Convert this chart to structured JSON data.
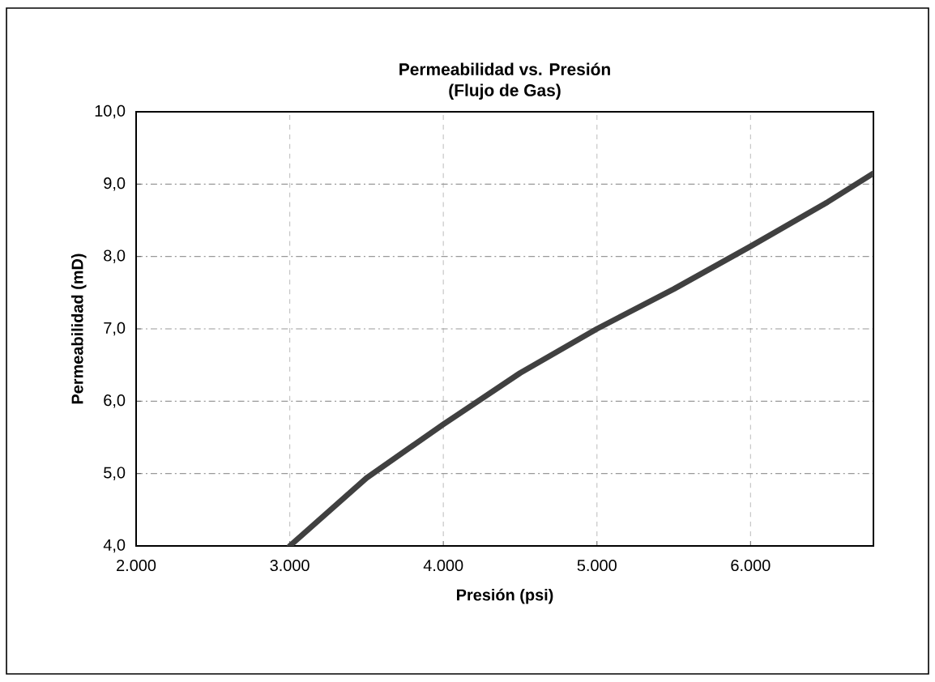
{
  "chart_data": {
    "type": "line",
    "title": "Permeabilidad vs. Presión",
    "subtitle": "(Flujo de Gas)",
    "xlabel": "Presión (psi)",
    "ylabel": "Permeabilidad  (mD)",
    "x": [
      3000,
      3500,
      4000,
      4500,
      5000,
      5500,
      6000,
      6500,
      6800
    ],
    "series": [
      {
        "color": "#404040",
        "values": [
          4.0,
          4.94,
          5.68,
          6.39,
          7.0,
          7.55,
          8.14,
          8.75,
          9.15
        ]
      }
    ],
    "xlim": [
      2000,
      6800
    ],
    "xticks": [
      {
        "value": 2000,
        "label": "2.000"
      },
      {
        "value": 3000,
        "label": "3.000"
      },
      {
        "value": 4000,
        "label": "4.000"
      },
      {
        "value": 5000,
        "label": "5.000"
      },
      {
        "value": 6000,
        "label": "6.000"
      }
    ],
    "ylim": [
      4,
      10
    ],
    "yticks": [
      {
        "value": 4,
        "label": "4,0"
      },
      {
        "value": 5,
        "label": "5,0"
      },
      {
        "value": 6,
        "label": "6,0"
      },
      {
        "value": 7,
        "label": "7,0"
      },
      {
        "value": 8,
        "label": "8,0"
      },
      {
        "value": 9,
        "label": "9,0"
      },
      {
        "value": 10,
        "label": "10,0"
      }
    ],
    "grid": true,
    "marker": "none",
    "line_style": "solid"
  }
}
